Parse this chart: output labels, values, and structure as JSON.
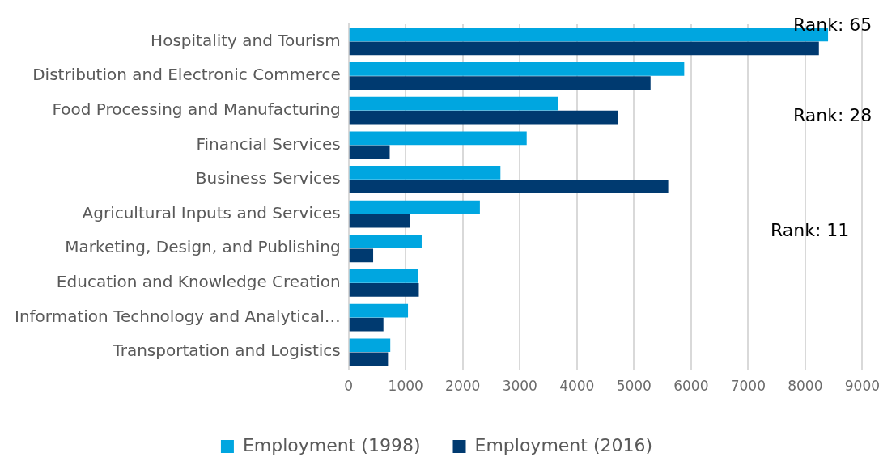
{
  "chart_data": {
    "type": "bar",
    "orientation": "horizontal",
    "categories": [
      "Hospitality and Tourism",
      "Distribution and Electronic Commerce",
      "Food Processing and Manufacturing",
      "Financial Services",
      "Business Services",
      "Agricultural Inputs and Services",
      "Marketing, Design, and Publishing",
      "Education and Knowledge Creation",
      "Information Technology and Analytical…",
      "Transportation and Logistics"
    ],
    "series": [
      {
        "name": "Employment (1998)",
        "color": "#00a6e0",
        "values": [
          8400,
          5880,
          3670,
          3120,
          2660,
          2300,
          1280,
          1220,
          1040,
          730
        ]
      },
      {
        "name": "Employment (2016)",
        "color": "#003a70",
        "values": [
          8240,
          5290,
          4720,
          720,
          5600,
          1080,
          430,
          1230,
          610,
          690
        ]
      }
    ],
    "xlim": [
      0,
      9000
    ],
    "xticks": [
      0,
      1000,
      2000,
      3000,
      4000,
      5000,
      6000,
      7000,
      8000,
      9000
    ],
    "grid": "x",
    "legend": "bottom",
    "annotations": [
      "Rank: 65",
      "Rank: 28",
      "Rank: 11"
    ]
  }
}
